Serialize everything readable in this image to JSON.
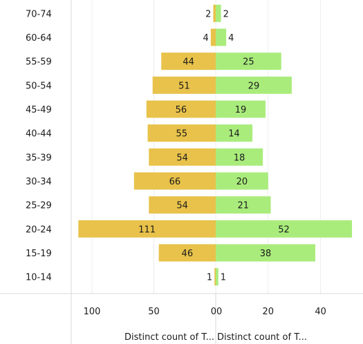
{
  "chart_data": {
    "type": "bar",
    "orientation": "horizontal-butterfly",
    "categories": [
      "70-74",
      "60-64",
      "55-59",
      "50-54",
      "45-49",
      "40-44",
      "35-39",
      "30-34",
      "25-29",
      "20-24",
      "15-19",
      "10-14"
    ],
    "series": [
      {
        "values": [
          2,
          4,
          44,
          51,
          56,
          55,
          54,
          66,
          54,
          111,
          46,
          1
        ],
        "color": "#e8c24a",
        "direction": "left"
      },
      {
        "values": [
          2,
          4,
          25,
          29,
          19,
          14,
          18,
          20,
          21,
          52,
          38,
          1
        ],
        "color": "#a9ec7c",
        "direction": "right"
      }
    ],
    "left_axis": {
      "ticks": [
        "100",
        "50",
        "0"
      ],
      "max": 120,
      "title": "Distinct count of T..."
    },
    "right_axis": {
      "ticks": [
        "0",
        "20",
        "40"
      ],
      "max": 52,
      "title": "Distinct count of T..."
    },
    "grid": true,
    "legend": "none"
  }
}
